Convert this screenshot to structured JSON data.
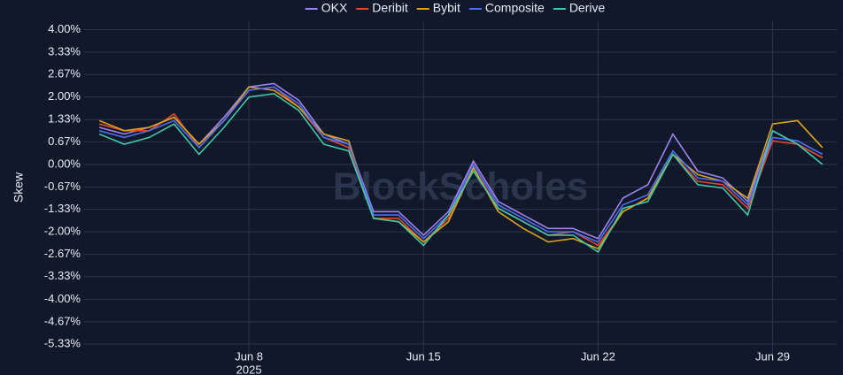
{
  "chart_data": {
    "type": "line",
    "y_label": "Skew",
    "watermark": "BlockScholes",
    "x_year": "2025",
    "x": [
      "2025-06-02",
      "2025-06-03",
      "2025-06-04",
      "2025-06-05",
      "2025-06-06",
      "2025-06-07",
      "2025-06-08",
      "2025-06-09",
      "2025-06-10",
      "2025-06-11",
      "2025-06-12",
      "2025-06-13",
      "2025-06-14",
      "2025-06-15",
      "2025-06-16",
      "2025-06-17",
      "2025-06-18",
      "2025-06-19",
      "2025-06-20",
      "2025-06-21",
      "2025-06-22",
      "2025-06-23",
      "2025-06-24",
      "2025-06-25",
      "2025-06-26",
      "2025-06-27",
      "2025-06-28",
      "2025-06-29",
      "2025-06-30",
      "2025-07-01"
    ],
    "xlim": [
      "2025-06-01",
      "2025-07-02"
    ],
    "xticks": [
      {
        "value": "2025-06-08",
        "label": "Jun 8"
      },
      {
        "value": "2025-06-15",
        "label": "Jun 15"
      },
      {
        "value": "2025-06-22",
        "label": "Jun 22"
      },
      {
        "value": "2025-06-29",
        "label": "Jun 29"
      }
    ],
    "ylim": [
      -5.75,
      4.25
    ],
    "yticks": [
      {
        "value": 4,
        "label": "4.00%"
      },
      {
        "value": 3.33,
        "label": "3.33%"
      },
      {
        "value": 2.67,
        "label": "2.67%"
      },
      {
        "value": 2,
        "label": "2.00%"
      },
      {
        "value": 1.33,
        "label": "1.33%"
      },
      {
        "value": 0.67,
        "label": "0.67%"
      },
      {
        "value": 0,
        "label": "0.00%"
      },
      {
        "value": -0.67,
        "label": "-0.67%"
      },
      {
        "value": -1.33,
        "label": "-1.33%"
      },
      {
        "value": -2,
        "label": "-2.00%"
      },
      {
        "value": -2.67,
        "label": "-2.67%"
      },
      {
        "value": -3.33,
        "label": "-3.33%"
      },
      {
        "value": -4,
        "label": "-4.00%"
      },
      {
        "value": -4.67,
        "label": "-4.67%"
      },
      {
        "value": -5.33,
        "label": "-5.33%"
      }
    ],
    "grid": true,
    "series": [
      {
        "name": "OKX",
        "color": "#9d82f0",
        "values": [
          1.1,
          0.9,
          1.1,
          1.4,
          0.6,
          1.4,
          2.3,
          2.4,
          1.9,
          0.9,
          0.6,
          -1.4,
          -1.4,
          -2.1,
          -1.4,
          0.1,
          -1.1,
          -1.5,
          -1.9,
          -1.9,
          -2.2,
          -1.0,
          -0.6,
          0.9,
          -0.2,
          -0.4,
          -1.1,
          1.0,
          0.6,
          0.2
        ]
      },
      {
        "name": "Deribit",
        "color": "#e2472e",
        "values": [
          1.2,
          1.0,
          1.0,
          1.5,
          0.5,
          1.3,
          2.2,
          2.3,
          1.7,
          0.8,
          0.5,
          -1.6,
          -1.6,
          -2.3,
          -1.6,
          -0.1,
          -1.3,
          -1.7,
          -2.1,
          -2.0,
          -2.4,
          -1.4,
          -1.0,
          0.3,
          -0.5,
          -0.6,
          -1.3,
          0.7,
          0.6,
          0.2
        ]
      },
      {
        "name": "Bybit",
        "color": "#d9a418",
        "values": [
          1.3,
          1.0,
          1.1,
          1.4,
          0.6,
          1.3,
          2.3,
          2.2,
          1.7,
          0.9,
          0.7,
          -1.6,
          -1.7,
          -2.3,
          -1.7,
          -0.1,
          -1.4,
          -1.9,
          -2.3,
          -2.2,
          -2.5,
          -1.4,
          -1.0,
          0.3,
          -0.3,
          -0.5,
          -1.0,
          1.2,
          1.3,
          0.5
        ]
      },
      {
        "name": "Composite",
        "color": "#4d6ff2",
        "values": [
          1.0,
          0.8,
          1.0,
          1.3,
          0.5,
          1.3,
          2.2,
          2.3,
          1.8,
          0.8,
          0.6,
          -1.5,
          -1.5,
          -2.2,
          -1.5,
          0.0,
          -1.2,
          -1.6,
          -2.0,
          -2.0,
          -2.3,
          -1.2,
          -0.9,
          0.4,
          -0.4,
          -0.5,
          -1.2,
          0.8,
          0.7,
          0.3
        ]
      },
      {
        "name": "Derive",
        "color": "#40c9a6",
        "values": [
          0.9,
          0.6,
          0.8,
          1.2,
          0.3,
          1.1,
          2.0,
          2.1,
          1.6,
          0.6,
          0.4,
          -1.6,
          -1.7,
          -2.4,
          -1.5,
          -0.2,
          -1.3,
          -1.7,
          -2.1,
          -2.1,
          -2.6,
          -1.3,
          -1.1,
          0.3,
          -0.6,
          -0.7,
          -1.5,
          1.0,
          0.6,
          0.0
        ]
      }
    ]
  }
}
